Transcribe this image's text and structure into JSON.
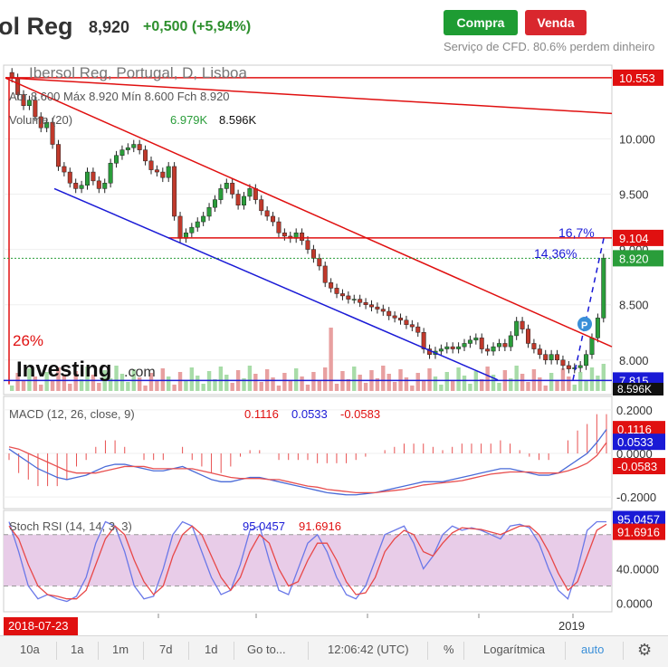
{
  "header": {
    "title": "ol Reg",
    "price": "8,920",
    "change": "+0,500 (+5,94%)",
    "buy_label": "Compra",
    "sell_label": "Venda",
    "cfd_note": "Serviço de CFD. 80.6% perdem dinheiro"
  },
  "colors": {
    "up": "#2a9d3a",
    "down": "#c0392b",
    "trend_red": "#e01010",
    "trend_blue": "#1a1ad6",
    "volume_up": "#a8dca8",
    "volume_down": "#e8a0a0",
    "macd_line": "#4a6bd8",
    "signal_line": "#e85050",
    "stoch_k": "#6a78e8",
    "stoch_d": "#e84848",
    "stoch_fill": "#e8cce8"
  },
  "chart_data": [
    {
      "type": "candlestick",
      "title": "Ibersol Reg, Portugal, D, Lisboa",
      "ohlc_label": "Abr 8.600  Máx 8.920  Mín 8.600  Fch 8.920",
      "volume_label": "Volume (20)",
      "volume_value_1": "6.979K",
      "volume_value_2": "8.596K",
      "volume_tag": "8.596K",
      "y_ticks": [
        10.0,
        9.5,
        9.0,
        8.5,
        8.0
      ],
      "y_tick_labels": [
        "10.000",
        "9.500",
        "9.000",
        "8.500",
        "8.000"
      ],
      "ylim": [
        7.72,
        10.65
      ],
      "price_tags": [
        {
          "label": "10.553",
          "value": 10.553,
          "color": "#e01010"
        },
        {
          "label": "9.104",
          "value": 9.104,
          "color": "#e01010"
        },
        {
          "label": "8.920",
          "value": 8.92,
          "color": "#2a9d3a"
        },
        {
          "label": "7.815",
          "value": 7.815,
          "color": "#1a1ad6"
        }
      ],
      "annotations": [
        "26%",
        "16,7%",
        "14,36%"
      ],
      "closes": [
        10.55,
        10.4,
        10.3,
        10.35,
        10.2,
        10.1,
        10.15,
        9.95,
        9.75,
        9.7,
        9.6,
        9.55,
        9.58,
        9.7,
        9.62,
        9.55,
        9.6,
        9.78,
        9.85,
        9.9,
        9.92,
        9.95,
        9.9,
        9.8,
        9.72,
        9.7,
        9.65,
        9.75,
        9.3,
        9.1,
        9.15,
        9.2,
        9.25,
        9.3,
        9.38,
        9.45,
        9.55,
        9.6,
        9.5,
        9.4,
        9.48,
        9.55,
        9.45,
        9.35,
        9.3,
        9.25,
        9.15,
        9.12,
        9.1,
        9.15,
        9.08,
        9.0,
        8.92,
        8.85,
        8.7,
        8.65,
        8.6,
        8.58,
        8.55,
        8.55,
        8.52,
        8.5,
        8.48,
        8.46,
        8.44,
        8.4,
        8.38,
        8.36,
        8.32,
        8.3,
        8.25,
        8.1,
        8.05,
        8.08,
        8.1,
        8.12,
        8.1,
        8.12,
        8.15,
        8.18,
        8.2,
        8.1,
        8.08,
        8.12,
        8.15,
        8.12,
        8.22,
        8.35,
        8.28,
        8.15,
        8.1,
        8.05,
        8.0,
        8.05,
        8.0,
        7.95,
        7.92,
        7.93,
        7.95,
        8.05,
        8.2,
        8.38,
        8.92
      ]
    },
    {
      "type": "line",
      "title": "MACD (12, 26, close, 9)",
      "values_label": [
        "0.1116",
        "0.0533",
        "-0.0583"
      ],
      "y_ticks": [
        0.2,
        0.0,
        -0.2
      ],
      "y_tick_labels": [
        "0.2000",
        "0.0000",
        "-0.2000"
      ],
      "ylim": [
        -0.245,
        0.245
      ],
      "series": [
        {
          "name": "MACD",
          "values": [
            0.02,
            -0.01,
            -0.04,
            -0.07,
            -0.09,
            -0.11,
            -0.12,
            -0.11,
            -0.1,
            -0.08,
            -0.06,
            -0.05,
            -0.05,
            -0.06,
            -0.07,
            -0.08,
            -0.08,
            -0.07,
            -0.06,
            -0.08,
            -0.1,
            -0.12,
            -0.13,
            -0.13,
            -0.12,
            -0.11,
            -0.11,
            -0.12,
            -0.13,
            -0.14,
            -0.15,
            -0.16,
            -0.17,
            -0.18,
            -0.185,
            -0.19,
            -0.19,
            -0.185,
            -0.18,
            -0.17,
            -0.16,
            -0.15,
            -0.14,
            -0.13,
            -0.13,
            -0.13,
            -0.12,
            -0.11,
            -0.1,
            -0.09,
            -0.08,
            -0.07,
            -0.07,
            -0.08,
            -0.09,
            -0.1,
            -0.1,
            -0.09,
            -0.06,
            -0.03,
            0.0,
            0.05,
            0.11
          ]
        },
        {
          "name": "Signal",
          "values": [
            0.03,
            0.02,
            0.0,
            -0.02,
            -0.04,
            -0.06,
            -0.08,
            -0.09,
            -0.09,
            -0.09,
            -0.08,
            -0.07,
            -0.06,
            -0.06,
            -0.06,
            -0.07,
            -0.07,
            -0.07,
            -0.07,
            -0.07,
            -0.08,
            -0.09,
            -0.1,
            -0.11,
            -0.115,
            -0.115,
            -0.115,
            -0.12,
            -0.12,
            -0.13,
            -0.14,
            -0.15,
            -0.155,
            -0.165,
            -0.17,
            -0.175,
            -0.18,
            -0.18,
            -0.18,
            -0.175,
            -0.17,
            -0.165,
            -0.155,
            -0.145,
            -0.14,
            -0.135,
            -0.13,
            -0.125,
            -0.115,
            -0.105,
            -0.095,
            -0.09,
            -0.085,
            -0.085,
            -0.085,
            -0.09,
            -0.09,
            -0.09,
            -0.08,
            -0.065,
            -0.045,
            -0.01,
            0.05
          ]
        }
      ]
    },
    {
      "type": "line",
      "title": "Stoch RSI (14, 14, 3, 3)",
      "values_label": [
        "95.0457",
        "91.6916"
      ],
      "y_ticks": [
        80,
        40,
        0
      ],
      "y_tick_labels": [
        "80.0000",
        "40.0000",
        "0.0000"
      ],
      "band": [
        20,
        80
      ],
      "ylim": [
        -8,
        104
      ],
      "series": [
        {
          "name": "K",
          "values": [
            95,
            60,
            20,
            5,
            10,
            5,
            2,
            8,
            30,
            70,
            95,
            90,
            60,
            20,
            5,
            8,
            40,
            80,
            95,
            90,
            60,
            30,
            10,
            15,
            45,
            85,
            90,
            50,
            15,
            10,
            40,
            70,
            80,
            60,
            30,
            10,
            5,
            20,
            50,
            80,
            85,
            90,
            70,
            40,
            55,
            80,
            90,
            85,
            88,
            85,
            80,
            75,
            90,
            92,
            88,
            70,
            40,
            15,
            5,
            40,
            85,
            95,
            95
          ]
        },
        {
          "name": "D",
          "values": [
            90,
            75,
            45,
            20,
            10,
            8,
            5,
            5,
            15,
            45,
            75,
            90,
            80,
            50,
            25,
            10,
            20,
            55,
            80,
            90,
            80,
            55,
            30,
            15,
            30,
            60,
            80,
            70,
            40,
            20,
            25,
            50,
            70,
            70,
            50,
            25,
            10,
            12,
            30,
            60,
            75,
            85,
            80,
            60,
            55,
            70,
            82,
            88,
            87,
            86,
            83,
            80,
            85,
            90,
            90,
            80,
            60,
            35,
            15,
            25,
            55,
            85,
            92
          ]
        }
      ]
    },
    {
      "type": "axis",
      "x_tick_labels": [
        "2018-07-23",
        "2019"
      ]
    }
  ],
  "toolbar": {
    "items": [
      "10a",
      "1a",
      "1m",
      "7d",
      "1d",
      "Go to...",
      "12:06:42 (UTC)",
      "%",
      "Logarítmica",
      "auto"
    ]
  }
}
